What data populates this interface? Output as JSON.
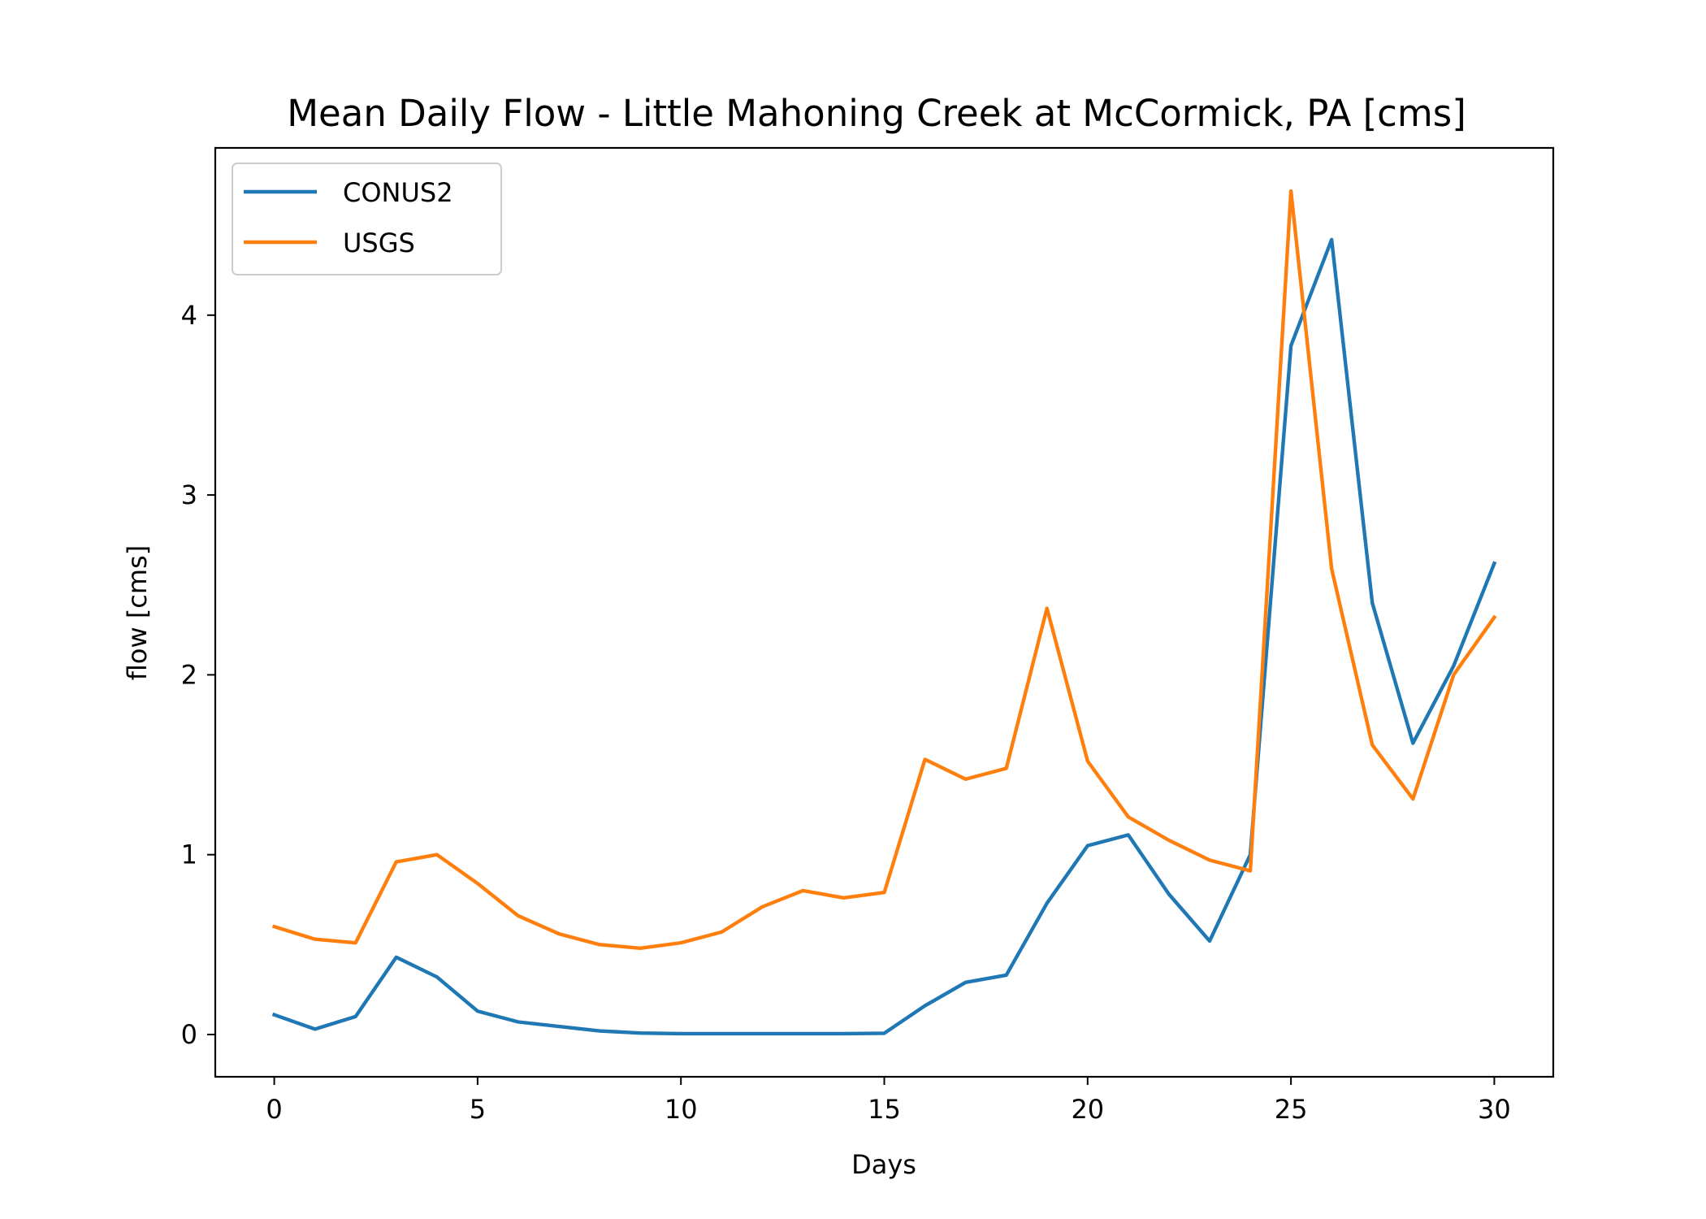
{
  "chart_data": {
    "type": "line",
    "title": "Mean Daily Flow - Little Mahoning Creek at McCormick, PA [cms]",
    "xlabel": "Days",
    "ylabel": "flow [cms]",
    "xlim": [
      -1.45,
      31.45
    ],
    "ylim": [
      -0.235,
      4.93
    ],
    "xticks": [
      0,
      5,
      10,
      15,
      20,
      25,
      30
    ],
    "yticks": [
      0,
      1,
      2,
      3,
      4
    ],
    "grid": false,
    "legend_position": "top-left",
    "x": [
      0,
      1,
      2,
      3,
      4,
      5,
      6,
      7,
      8,
      9,
      10,
      11,
      12,
      13,
      14,
      15,
      16,
      17,
      18,
      19,
      20,
      21,
      22,
      23,
      24,
      25,
      26,
      27,
      28,
      29,
      30
    ],
    "series": [
      {
        "name": "CONUS2",
        "color": "#1f77b4",
        "values": [
          0.11,
          0.03,
          0.1,
          0.43,
          0.32,
          0.13,
          0.07,
          0.045,
          0.02,
          0.008,
          0.005,
          0.005,
          0.005,
          0.005,
          0.005,
          0.007,
          0.16,
          0.29,
          0.33,
          0.73,
          1.05,
          1.11,
          0.78,
          0.52,
          1.0,
          3.83,
          4.42,
          2.4,
          1.62,
          2.05,
          2.62
        ]
      },
      {
        "name": "USGS",
        "color": "#ff7f0e",
        "values": [
          0.6,
          0.53,
          0.51,
          0.96,
          1.0,
          0.84,
          0.66,
          0.56,
          0.5,
          0.48,
          0.51,
          0.57,
          0.71,
          0.8,
          0.76,
          0.79,
          1.53,
          1.42,
          1.48,
          2.37,
          1.52,
          1.21,
          1.08,
          0.97,
          0.91,
          4.69,
          2.59,
          1.61,
          1.31,
          2.0,
          2.32
        ]
      }
    ]
  }
}
